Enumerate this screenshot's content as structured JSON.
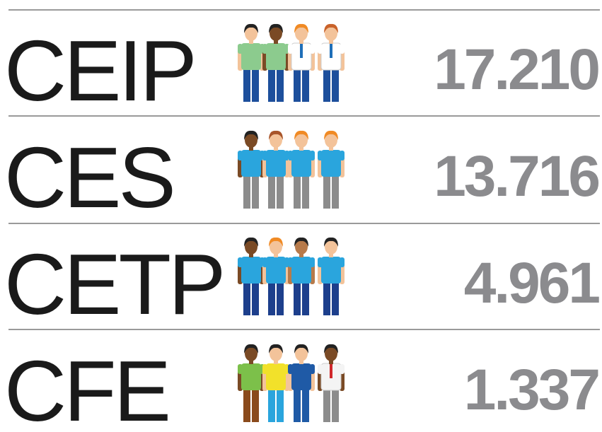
{
  "rows": [
    {
      "label": "CEIP",
      "value": "17.210"
    },
    {
      "label": "CES",
      "value": "13.716"
    },
    {
      "label": "CETP",
      "value": "4.961"
    },
    {
      "label": "CFE",
      "value": "1.337"
    }
  ]
}
